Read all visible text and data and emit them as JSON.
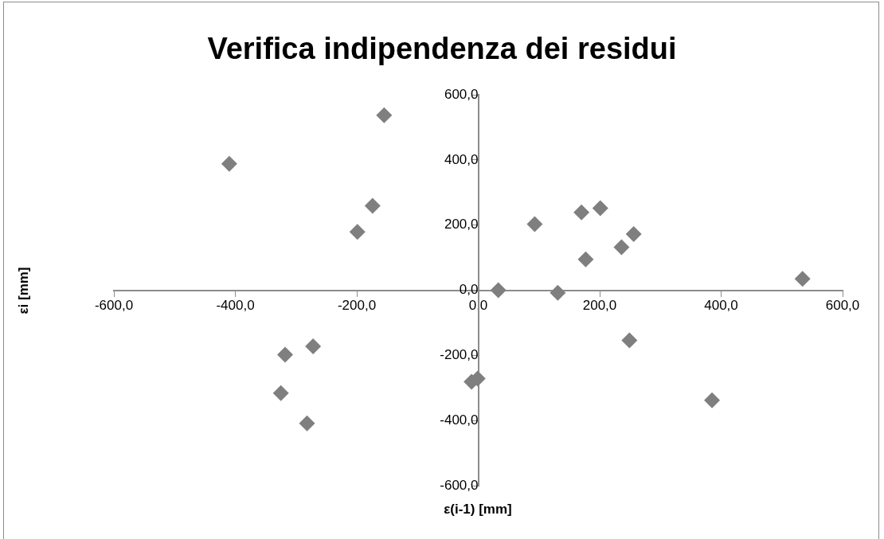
{
  "chart_data": {
    "type": "scatter",
    "title": "Verifica indipendenza dei residui",
    "xlabel": "ε(i-1) [mm]",
    "ylabel": "εi [mm]",
    "x": [
      -410,
      -155,
      -174,
      -199,
      93,
      170,
      201,
      256,
      236,
      177,
      33,
      131,
      534,
      249,
      385,
      -272,
      -318,
      -325,
      -282,
      -11,
      -1
    ],
    "series": [
      {
        "color": "#7f7f7f",
        "values": [
          388,
          537,
          259,
          179,
          203,
          239,
          252,
          172,
          132,
          95,
          0,
          -8,
          35,
          -154,
          -338,
          -172,
          -198,
          -316,
          -409,
          -281,
          -271
        ]
      }
    ],
    "xlim": [
      -600,
      600
    ],
    "ylim": [
      -600,
      600
    ],
    "xticks": [
      {
        "value": -600,
        "label": "-600,0"
      },
      {
        "value": -400,
        "label": "-400,0"
      },
      {
        "value": -200,
        "label": "-200,0"
      },
      {
        "value": 0,
        "label": "0,0"
      },
      {
        "value": 200,
        "label": "200,0"
      },
      {
        "value": 400,
        "label": "400,0"
      },
      {
        "value": 600,
        "label": "600,0"
      }
    ],
    "yticks": [
      {
        "value": -600,
        "label": "-600,0"
      },
      {
        "value": -400,
        "label": "-400,0"
      },
      {
        "value": -200,
        "label": "-200,0"
      },
      {
        "value": 0,
        "label": "0,0"
      },
      {
        "value": 200,
        "label": "200,0"
      },
      {
        "value": 400,
        "label": "400,0"
      },
      {
        "value": 600,
        "label": "600,0"
      }
    ],
    "grid": false,
    "legend": false,
    "marker": "diamond"
  }
}
